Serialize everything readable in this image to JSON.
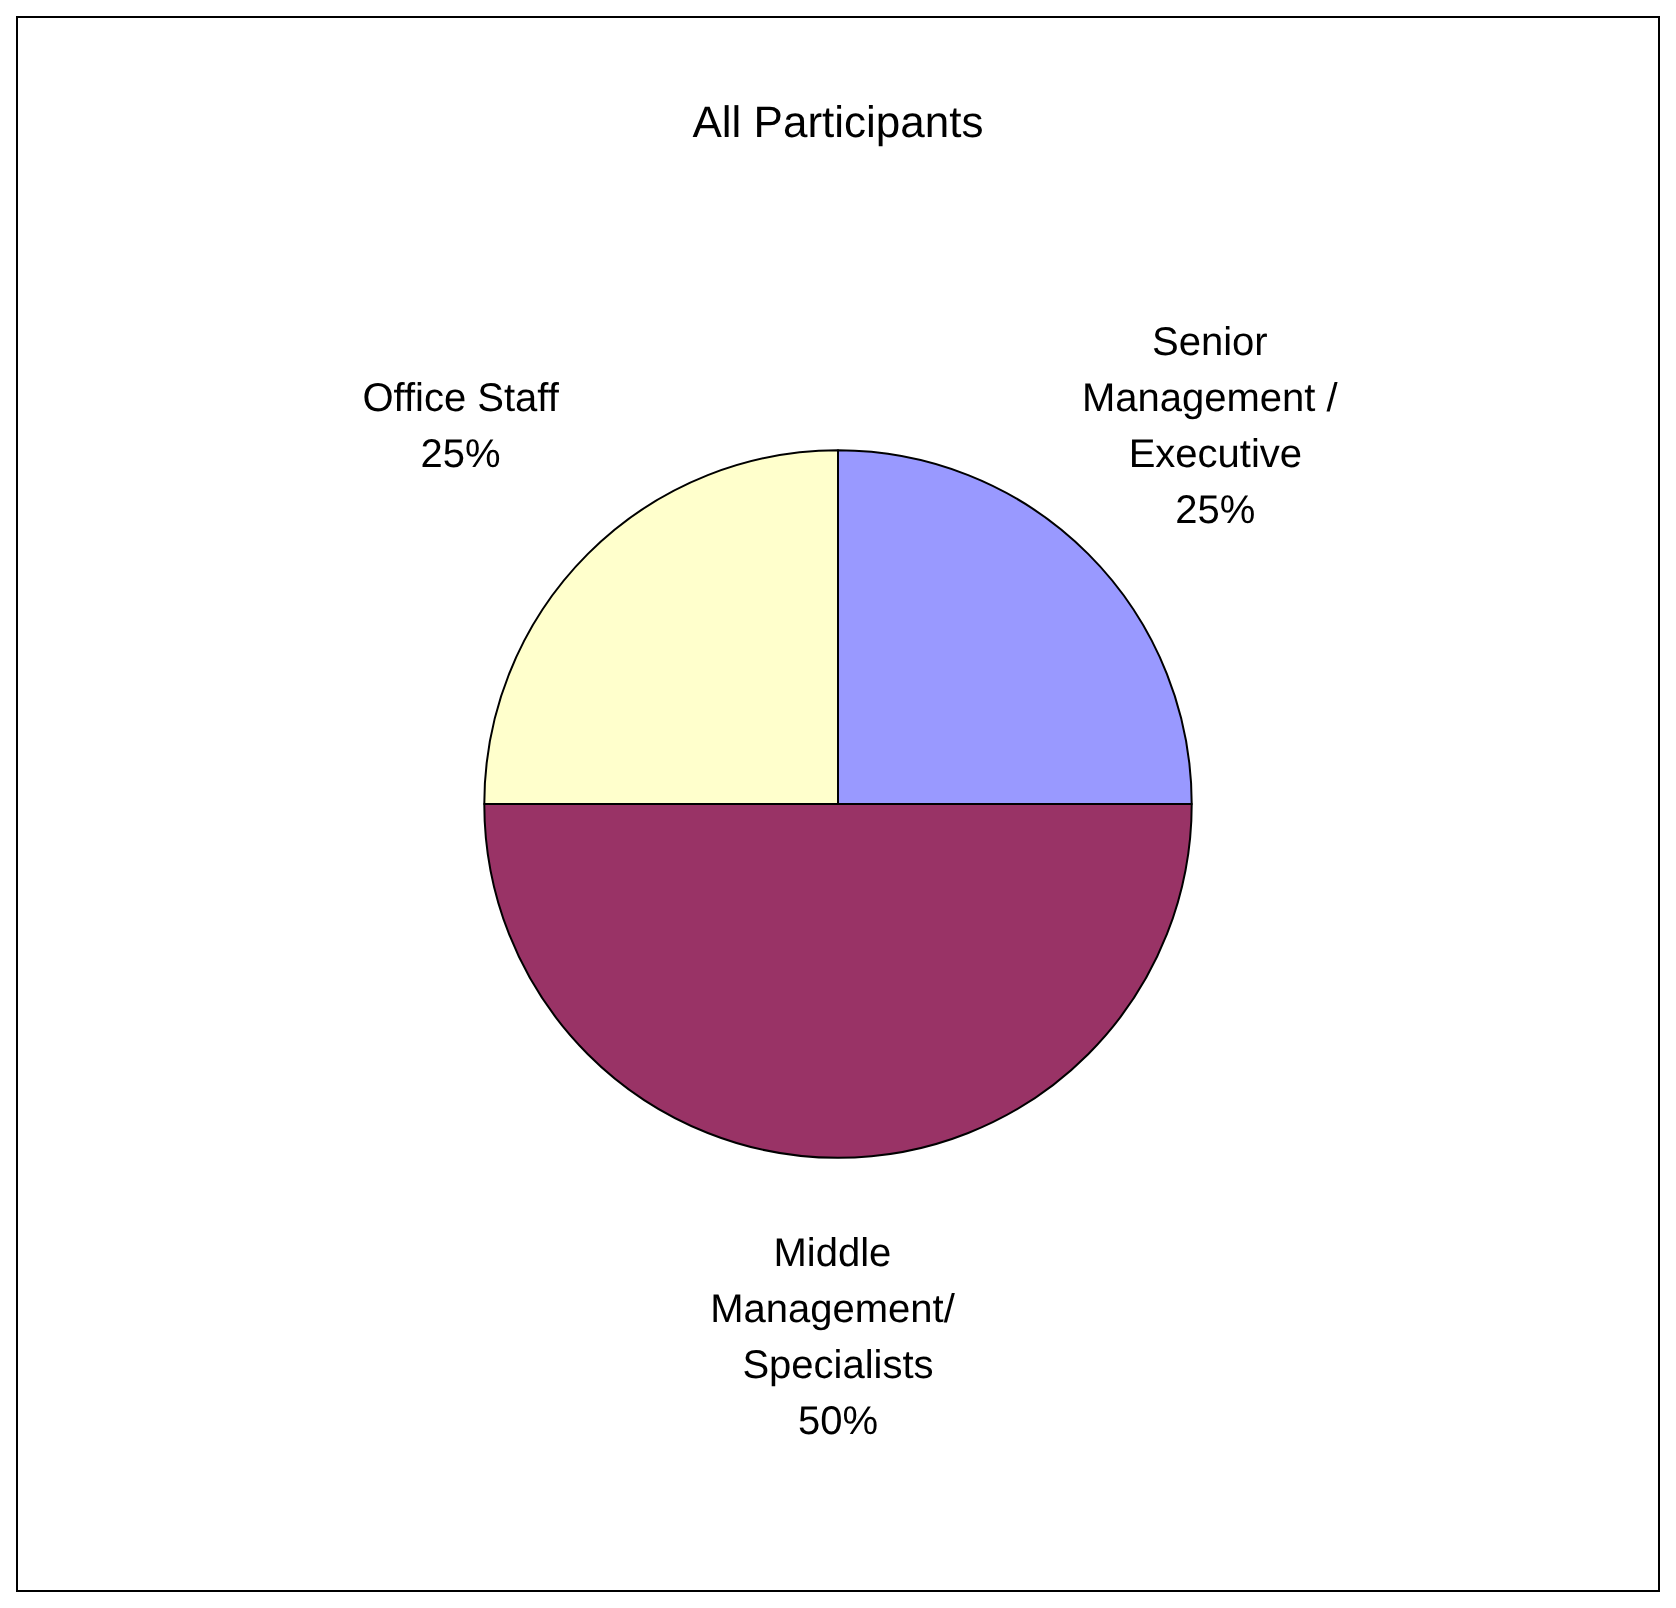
{
  "chart_data": {
    "type": "pie",
    "title": "All Participants",
    "categories": [
      "Senior Management / Executive",
      "Middle Management/ Specialists",
      "Office Staff"
    ],
    "values": [
      25,
      50,
      25
    ],
    "colors": [
      "#9999ff",
      "#993366",
      "#ffffcc"
    ],
    "value_labels": [
      "25%",
      "50%",
      "25%"
    ],
    "legend": false
  }
}
